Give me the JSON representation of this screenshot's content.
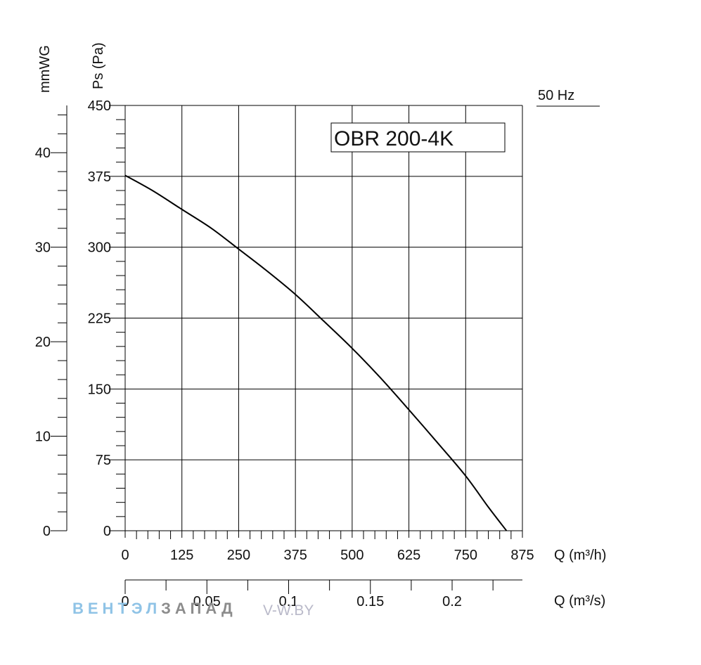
{
  "chart_data": {
    "type": "line",
    "title": "OBR 200-4K",
    "frequency_label": "50 Hz",
    "ylabel_left": "mmWG",
    "ylabel": "Ps (Pa)",
    "xlabel": "Q (m³/h)",
    "xlabel_secondary": "Q (m³/s)",
    "xlim": [
      0,
      875
    ],
    "ylim": [
      0,
      450
    ],
    "x_ticks": [
      "0",
      "125",
      "250",
      "375",
      "500",
      "625",
      "750",
      "875"
    ],
    "y_ticks": [
      "0",
      "75",
      "150",
      "225",
      "300",
      "375",
      "450"
    ],
    "mmwg_ticks": [
      "0",
      "10",
      "20",
      "30",
      "40"
    ],
    "mmwg_lim": [
      0,
      45
    ],
    "secondary_ticks": [
      "0",
      "0.05",
      "0.1",
      "0.15",
      "0.2"
    ],
    "secondary_lim": [
      0,
      0.243
    ],
    "grid": true,
    "series": [
      {
        "x": [
          0,
          60,
          125,
          190,
          250,
          312,
          375,
          437,
          500,
          562,
          625,
          690,
          750,
          800,
          840
        ],
        "y": [
          376,
          360,
          340,
          320,
          298,
          275,
          250,
          222,
          193,
          162,
          128,
          92,
          58,
          25,
          0
        ]
      }
    ]
  },
  "watermark": {
    "brand_part1": "ВЕНТЭЛ",
    "brand_part2": "ЗАПАД",
    "site": "V-W.BY"
  },
  "colors": {
    "line": "#000000",
    "grid": "#000000",
    "watermark_blue": "#8fc3e6",
    "watermark_grey": "#8c8c8c"
  }
}
